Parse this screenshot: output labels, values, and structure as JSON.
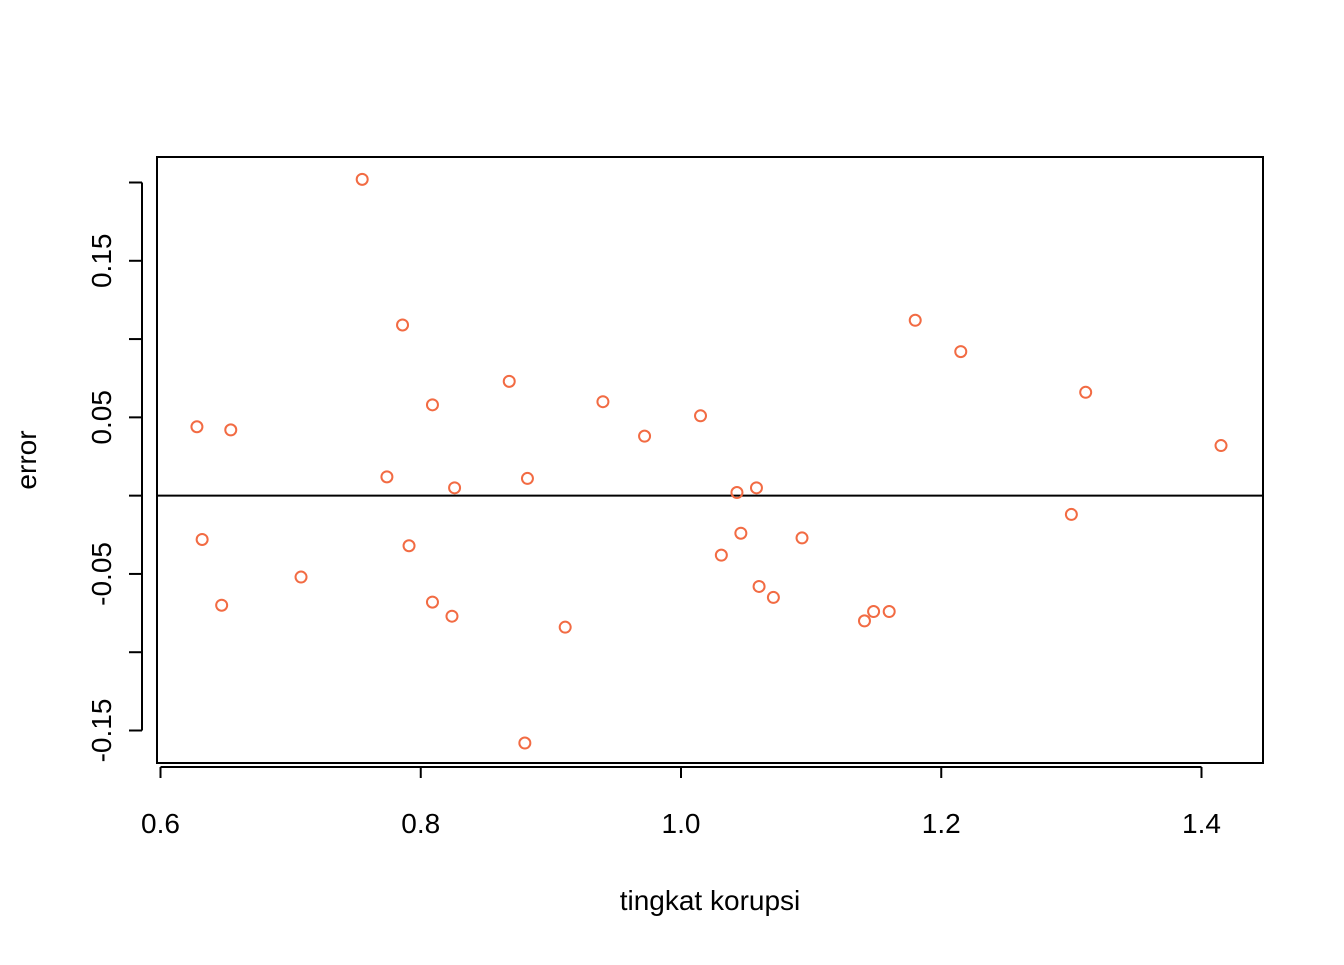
{
  "chart_data": {
    "type": "scatter",
    "title": "",
    "xlabel": "tingkat korupsi",
    "ylabel": "error",
    "xlim": [
      0.6,
      1.4
    ],
    "ylim": [
      -0.15,
      0.2
    ],
    "x_ticks": [
      0.6,
      0.8,
      1.0,
      1.2,
      1.4
    ],
    "x_tick_labels": [
      "0.6",
      "0.8",
      "1.0",
      "1.2",
      "1.4"
    ],
    "y_ticks": [
      -0.15,
      -0.1,
      -0.05,
      0.0,
      0.05,
      0.1,
      0.15,
      0.2
    ],
    "y_tick_labels": [
      "-0.15",
      "",
      "-0.05",
      "",
      "0.05",
      "",
      "0.15",
      ""
    ],
    "reference_line_y": 0,
    "point_color": "#F26B43",
    "grid": false,
    "points": [
      {
        "x": 0.628,
        "y": 0.044
      },
      {
        "x": 0.632,
        "y": -0.028
      },
      {
        "x": 0.647,
        "y": -0.07
      },
      {
        "x": 0.654,
        "y": 0.042
      },
      {
        "x": 0.708,
        "y": -0.052
      },
      {
        "x": 0.755,
        "y": 0.202
      },
      {
        "x": 0.774,
        "y": 0.012
      },
      {
        "x": 0.786,
        "y": 0.109
      },
      {
        "x": 0.791,
        "y": -0.032
      },
      {
        "x": 0.809,
        "y": 0.058
      },
      {
        "x": 0.809,
        "y": -0.068
      },
      {
        "x": 0.824,
        "y": -0.077
      },
      {
        "x": 0.826,
        "y": 0.005
      },
      {
        "x": 0.868,
        "y": 0.073
      },
      {
        "x": 0.88,
        "y": -0.158
      },
      {
        "x": 0.882,
        "y": 0.011
      },
      {
        "x": 0.911,
        "y": -0.084
      },
      {
        "x": 0.94,
        "y": 0.06
      },
      {
        "x": 0.972,
        "y": 0.038
      },
      {
        "x": 1.015,
        "y": 0.051
      },
      {
        "x": 1.031,
        "y": -0.038
      },
      {
        "x": 1.043,
        "y": 0.002
      },
      {
        "x": 1.046,
        "y": -0.024
      },
      {
        "x": 1.058,
        "y": 0.005
      },
      {
        "x": 1.06,
        "y": -0.058
      },
      {
        "x": 1.071,
        "y": -0.065
      },
      {
        "x": 1.093,
        "y": -0.027
      },
      {
        "x": 1.141,
        "y": -0.08
      },
      {
        "x": 1.148,
        "y": -0.074
      },
      {
        "x": 1.16,
        "y": -0.074
      },
      {
        "x": 1.18,
        "y": 0.112
      },
      {
        "x": 1.215,
        "y": 0.092
      },
      {
        "x": 1.3,
        "y": -0.012
      },
      {
        "x": 1.311,
        "y": 0.066
      },
      {
        "x": 1.415,
        "y": 0.032
      }
    ]
  }
}
